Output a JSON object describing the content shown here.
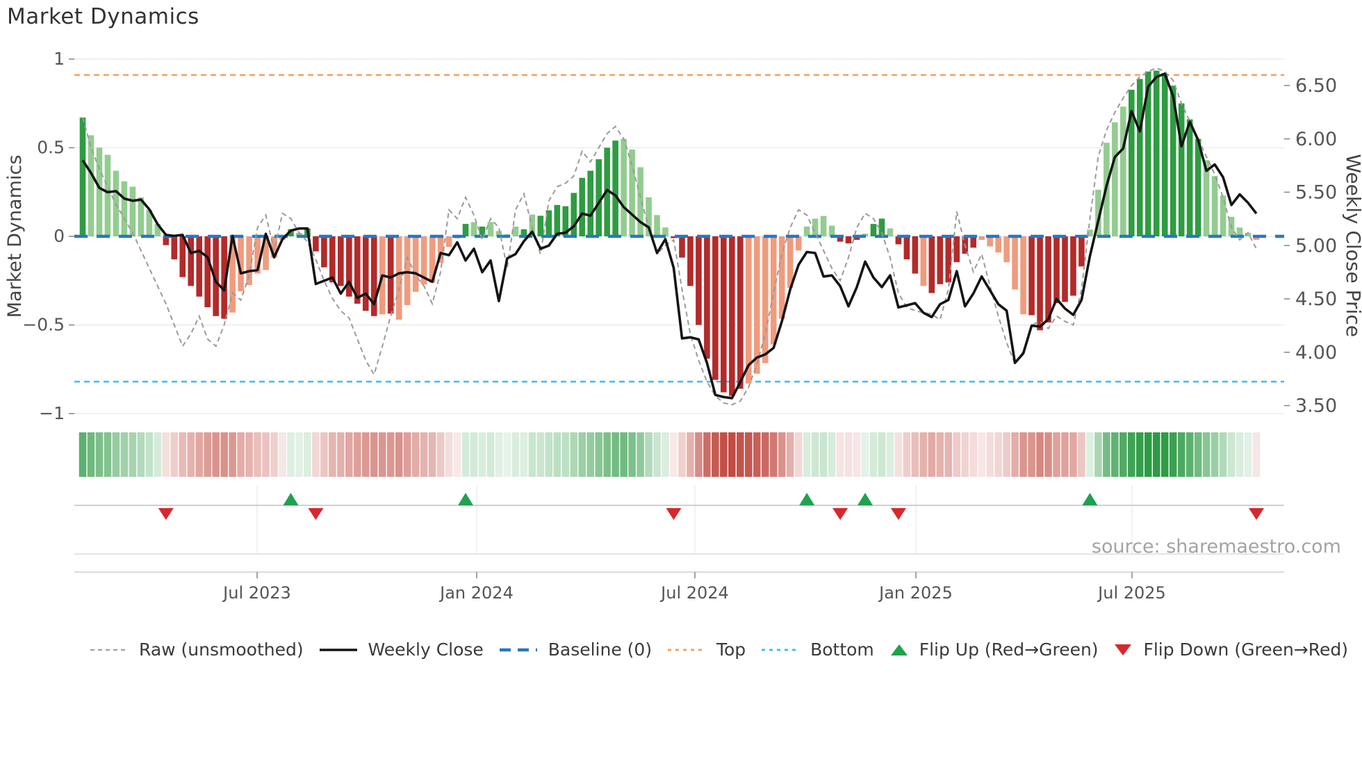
{
  "title": "Market Dynamics",
  "source_note": "source: sharemaestro.com",
  "axes": {
    "left_label": "Market Dynamics",
    "right_label": "Weekly Close Price",
    "left_ticks": [
      "1",
      "0.5",
      "0",
      "−0.5",
      "−1"
    ],
    "left_tick_values": [
      1,
      0.5,
      0,
      -0.5,
      -1
    ],
    "right_ticks": [
      "6.50",
      "6.00",
      "5.50",
      "5.00",
      "4.50",
      "4.00",
      "3.50"
    ],
    "right_tick_values": [
      6.5,
      6.0,
      5.5,
      5.0,
      4.5,
      4.0,
      3.5
    ],
    "x_ticks": [
      "Jul 2023",
      "Jan 2024",
      "Jul 2024",
      "Jan 2025",
      "Jul 2025"
    ]
  },
  "legend": [
    {
      "label": "Raw (unsmoothed)",
      "glyph": "dashed-gray-line"
    },
    {
      "label": "Weekly Close",
      "glyph": "solid-black-line"
    },
    {
      "label": "Baseline (0)",
      "glyph": "dashed-blue-line"
    },
    {
      "label": "Top",
      "glyph": "dotted-orange-line"
    },
    {
      "label": "Bottom",
      "glyph": "dotted-cyan-line"
    },
    {
      "label": "Flip Up (Red→Green)",
      "glyph": "green-up-triangle"
    },
    {
      "label": "Flip Down (Green→Red)",
      "glyph": "red-down-triangle"
    }
  ],
  "chart_data": {
    "type": "bar",
    "subtype": "oscillator-with-price-overlay",
    "n_weeks": 142,
    "ylim_left": [
      -1,
      1
    ],
    "ylim_right": [
      3.5,
      6.5
    ],
    "baseline": 0,
    "top_band": 0.91,
    "bottom_band": -0.82,
    "grid": "horizontal-left-axis",
    "legend_position": "bottom",
    "bar_values": [
      0.67,
      0.57,
      0.5,
      0.46,
      0.37,
      0.31,
      0.28,
      0.22,
      0.15,
      0.07,
      -0.05,
      -0.13,
      -0.23,
      -0.28,
      -0.34,
      -0.4,
      -0.45,
      -0.465,
      -0.43,
      -0.31,
      -0.275,
      -0.21,
      -0.19,
      -0.12,
      -0.02,
      0.04,
      0.02,
      0.045,
      -0.085,
      -0.175,
      -0.26,
      -0.28,
      -0.34,
      -0.38,
      -0.42,
      -0.45,
      -0.44,
      -0.436,
      -0.47,
      -0.388,
      -0.313,
      -0.272,
      -0.262,
      -0.15,
      -0.06,
      -0.01,
      0.07,
      0.08,
      0.055,
      0.08,
      0.03,
      0.01,
      0.055,
      0.04,
      0.123,
      0.116,
      0.147,
      0.177,
      0.17,
      0.245,
      0.33,
      0.37,
      0.435,
      0.5,
      0.54,
      0.55,
      0.49,
      0.39,
      0.22,
      0.12,
      0.05,
      -0.01,
      -0.12,
      -0.28,
      -0.5,
      -0.69,
      -0.81,
      -0.88,
      -0.9,
      -0.86,
      -0.83,
      -0.775,
      -0.715,
      -0.61,
      -0.465,
      -0.29,
      -0.08,
      0.055,
      0.1,
      0.115,
      0.06,
      -0.03,
      -0.04,
      -0.02,
      0.015,
      0.07,
      0.1,
      0.045,
      -0.045,
      -0.13,
      -0.21,
      -0.28,
      -0.32,
      -0.27,
      -0.26,
      -0.146,
      -0.098,
      -0.064,
      -0.02,
      -0.057,
      -0.091,
      -0.146,
      -0.3,
      -0.44,
      -0.445,
      -0.53,
      -0.486,
      -0.377,
      -0.37,
      -0.335,
      -0.17,
      0.038,
      0.263,
      0.528,
      0.643,
      0.732,
      0.827,
      0.888,
      0.93,
      0.935,
      0.92,
      0.85,
      0.75,
      0.66,
      0.55,
      0.43,
      0.34,
      0.23,
      0.11,
      0.05,
      0.02,
      -0.02
    ],
    "bar_shades": "dlllllllllddddddddllllllldldddddddddldlllllllddldlldldlddddddddddlllllldddddddddllllllllllldddlddldddlddddddlllllldddddddllllldddddddddllllllllllld",
    "raw_values": [
      0.67,
      0.5,
      0.38,
      0.28,
      0.18,
      0.1,
      0.02,
      -0.08,
      -0.18,
      -0.28,
      -0.38,
      -0.5,
      -0.62,
      -0.55,
      -0.45,
      -0.58,
      -0.62,
      -0.5,
      -0.32,
      -0.36,
      -0.22,
      0.05,
      0.12,
      -0.08,
      0.13,
      0.1,
      0.02,
      -0.03,
      -0.13,
      -0.25,
      -0.35,
      -0.42,
      -0.46,
      -0.58,
      -0.7,
      -0.78,
      -0.62,
      -0.45,
      -0.3,
      -0.12,
      -0.22,
      -0.28,
      -0.38,
      -0.2,
      0.15,
      0.1,
      0.22,
      0.12,
      -0.02,
      0.1,
      0.05,
      -0.18,
      0.15,
      0.24,
      0.05,
      -0.1,
      0.2,
      0.28,
      0.3,
      0.34,
      0.48,
      0.42,
      0.5,
      0.58,
      0.62,
      0.55,
      0.4,
      0.22,
      0.05,
      -0.1,
      -0.05,
      -0.02,
      -0.3,
      -0.55,
      -0.7,
      -0.82,
      -0.9,
      -0.94,
      -0.95,
      -0.93,
      -0.85,
      -0.72,
      -0.55,
      -0.32,
      -0.1,
      0.05,
      0.15,
      0.12,
      0.02,
      -0.08,
      -0.18,
      -0.25,
      -0.12,
      0.05,
      0.13,
      0.1,
      0.02,
      -0.12,
      -0.32,
      -0.4,
      -0.42,
      -0.43,
      -0.44,
      -0.47,
      -0.3,
      0.14,
      -0.05,
      -0.2,
      -0.1,
      -0.28,
      -0.45,
      -0.6,
      -0.72,
      -0.65,
      -0.5,
      -0.48,
      -0.52,
      -0.45,
      -0.48,
      -0.5,
      -0.3,
      0.1,
      0.45,
      0.6,
      0.7,
      0.78,
      0.85,
      0.9,
      0.93,
      0.95,
      0.93,
      0.88,
      0.75,
      0.65,
      0.55,
      0.45,
      0.35,
      0.22,
      0.05,
      -0.02,
      0.02,
      -0.07
    ],
    "weekly_close": [
      5.8,
      5.68,
      5.54,
      5.5,
      5.51,
      5.44,
      5.42,
      5.43,
      5.34,
      5.2,
      5.1,
      5.09,
      5.1,
      4.93,
      4.95,
      4.89,
      4.66,
      4.58,
      5.09,
      4.74,
      4.76,
      4.77,
      5.11,
      4.89,
      5.06,
      5.14,
      5.16,
      5.16,
      4.64,
      4.67,
      4.7,
      4.55,
      4.66,
      4.51,
      4.55,
      4.45,
      4.72,
      4.7,
      4.74,
      4.75,
      4.74,
      4.7,
      4.66,
      4.93,
      4.91,
      5.03,
      4.86,
      4.97,
      4.75,
      4.86,
      4.48,
      4.88,
      4.92,
      5.04,
      5.13,
      4.97,
      5.0,
      5.11,
      5.12,
      5.18,
      5.3,
      5.28,
      5.4,
      5.52,
      5.47,
      5.36,
      5.29,
      5.22,
      5.17,
      4.93,
      5.06,
      4.79,
      4.13,
      4.14,
      4.12,
      3.9,
      3.6,
      3.58,
      3.57,
      3.72,
      3.88,
      3.95,
      3.98,
      4.04,
      4.29,
      4.59,
      4.82,
      4.94,
      4.93,
      4.71,
      4.72,
      4.62,
      4.43,
      4.61,
      4.85,
      4.7,
      4.61,
      4.72,
      4.42,
      4.44,
      4.46,
      4.37,
      4.33,
      4.45,
      4.49,
      4.76,
      4.43,
      4.55,
      4.71,
      4.58,
      4.45,
      4.39,
      3.9,
      3.99,
      4.25,
      4.24,
      4.31,
      4.5,
      4.41,
      4.35,
      4.49,
      4.9,
      5.23,
      5.56,
      5.83,
      5.91,
      6.26,
      6.07,
      6.49,
      6.58,
      6.61,
      6.4,
      5.93,
      6.16,
      5.99,
      5.7,
      5.76,
      5.64,
      5.38,
      5.48,
      5.4,
      5.3
    ],
    "flip_up_weeks": [
      25,
      46,
      87,
      94,
      121
    ],
    "flip_down_weeks": [
      10,
      28,
      71,
      91,
      98,
      141
    ],
    "colors": {
      "bar_dark_green": "#2E9C41",
      "bar_light_green": "#93CC90",
      "bar_dark_red": "#B32A2A",
      "bar_light_red": "#F09B7E",
      "raw_line": "#9a9a9a",
      "close_line": "#141414",
      "baseline": "#2878BE",
      "top_band": "#F2A25C",
      "bottom_band": "#3EC0EA",
      "flip_up": "#1EA34C",
      "flip_down": "#D7282D",
      "grid": "#EBEBEB",
      "tick_text": "#555555",
      "source_text": "#A3A3A3"
    }
  }
}
